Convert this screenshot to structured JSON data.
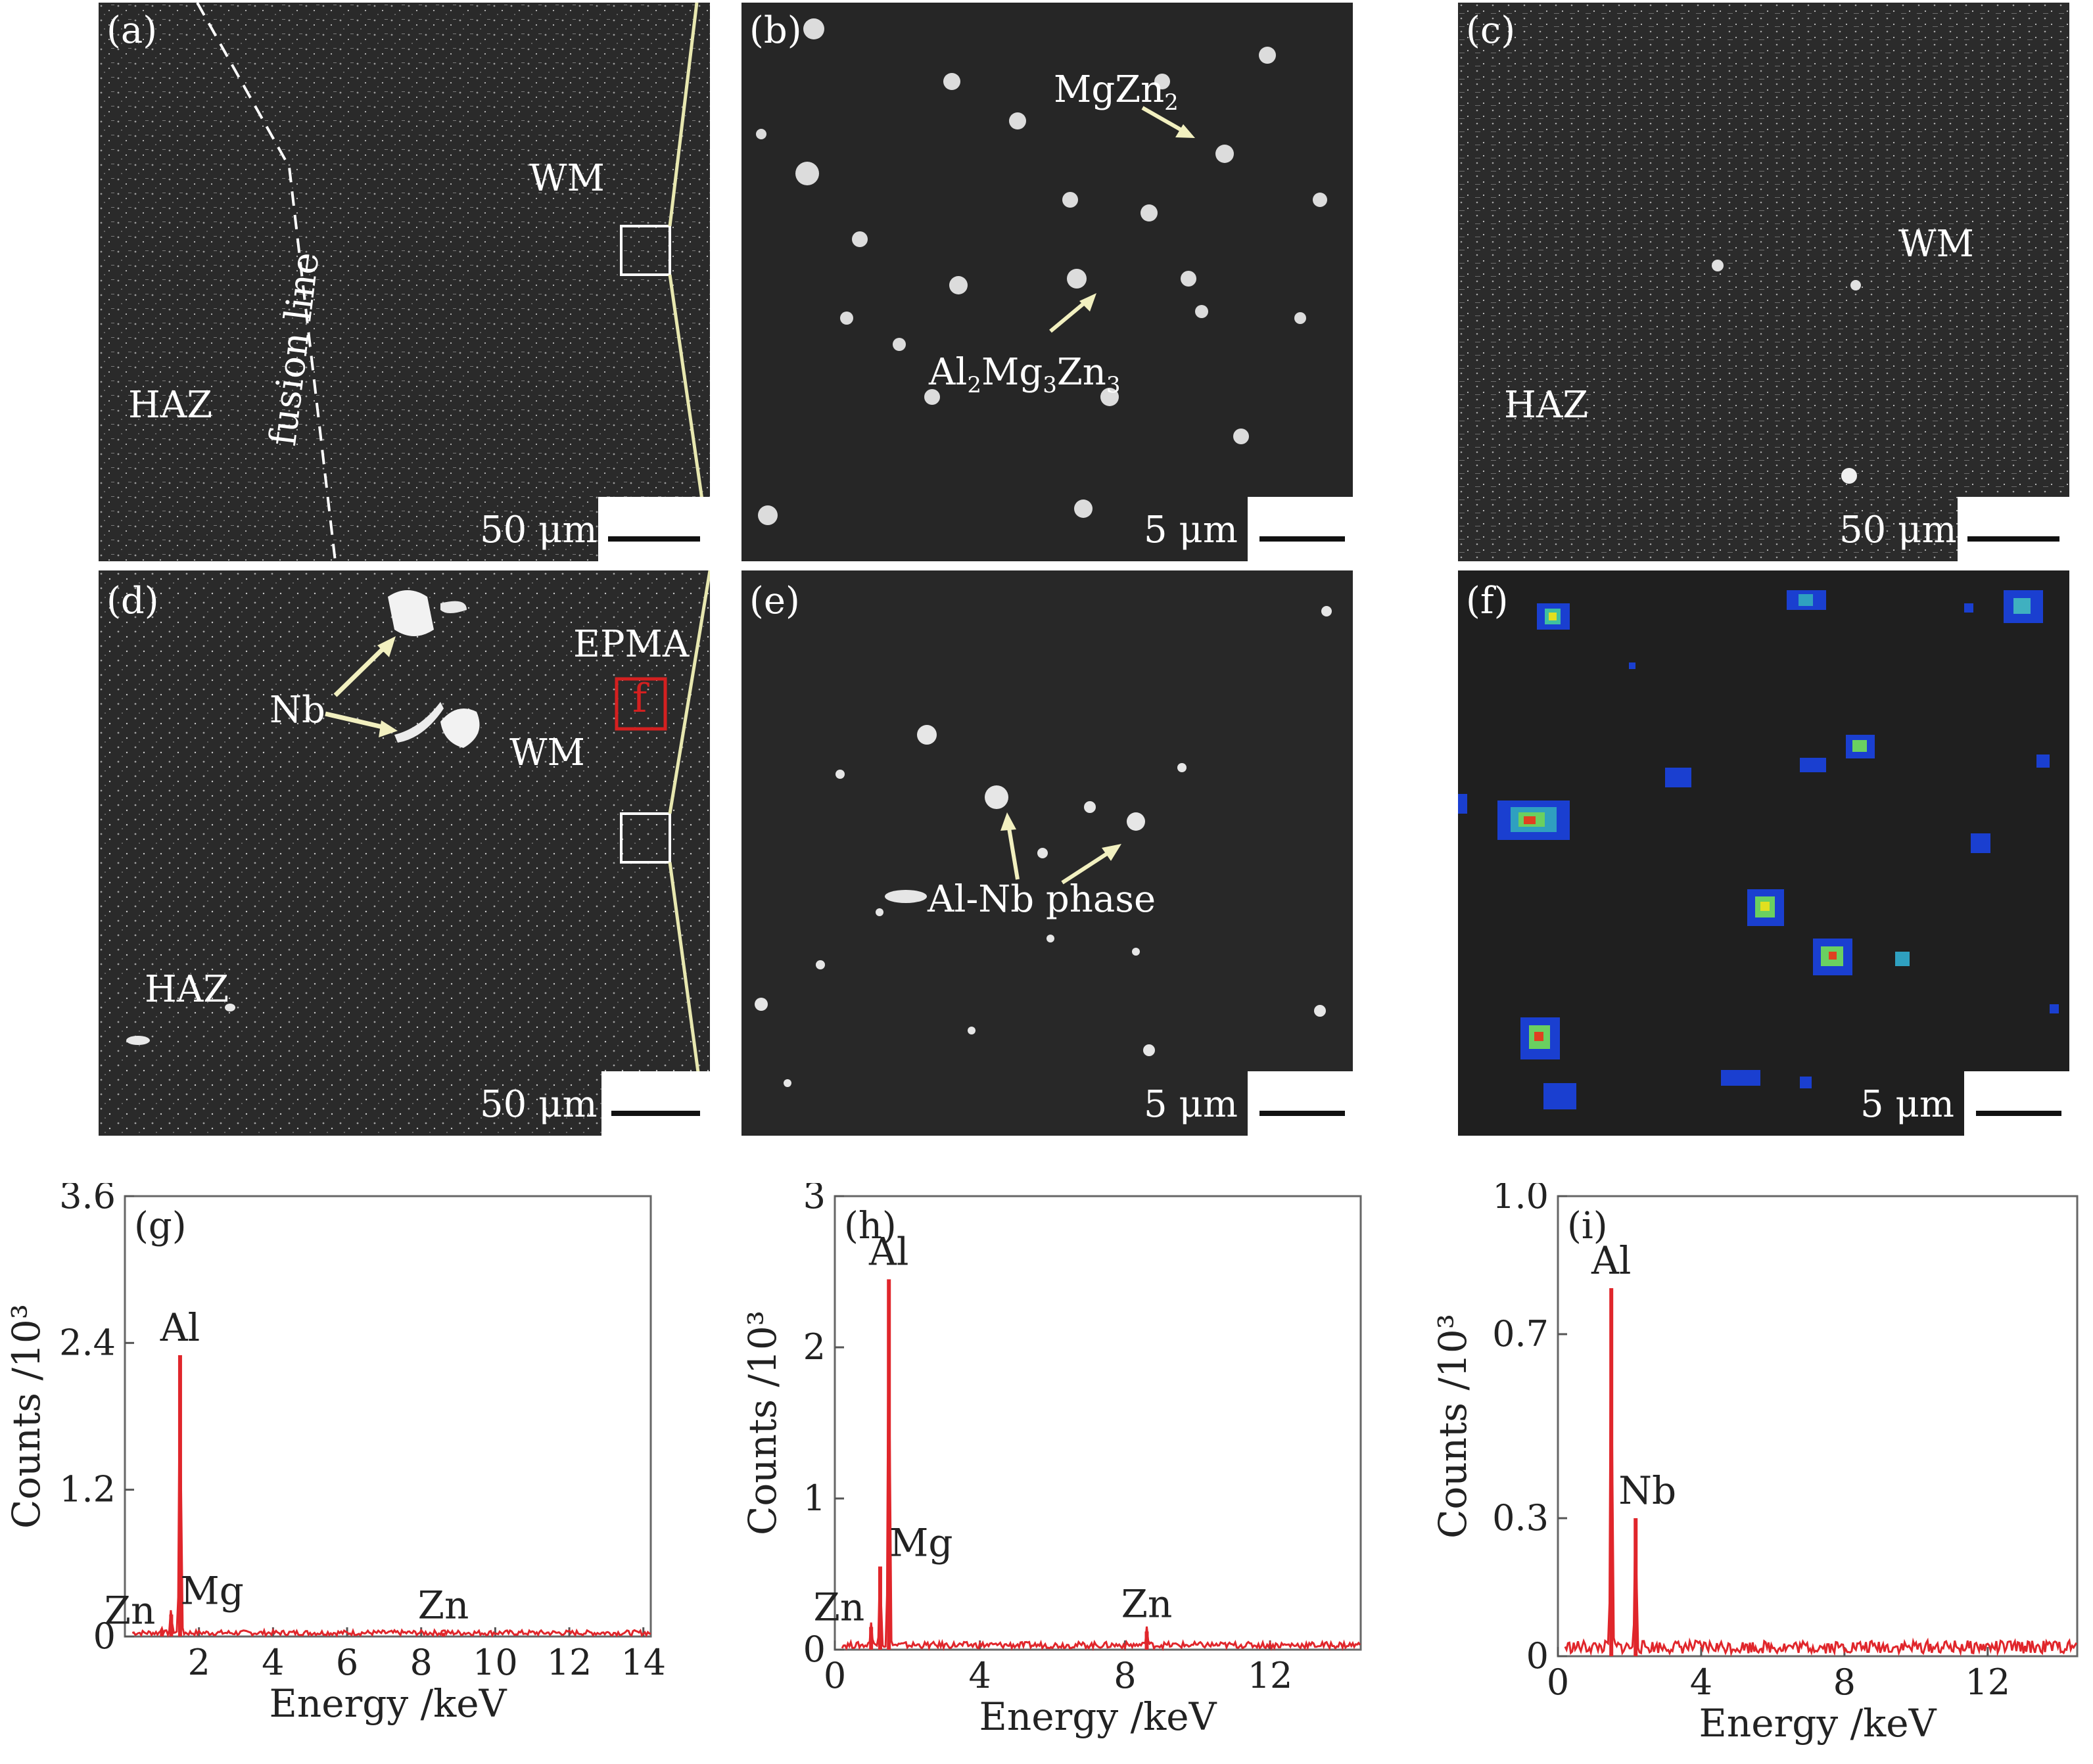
{
  "micrographs": {
    "a": {
      "label": "(a)",
      "scale": "50 μm",
      "haz": "HAZ",
      "wm": "WM",
      "fusion": "fusion line"
    },
    "b": {
      "label": "(b)",
      "scale": "5 μm",
      "mgzn2": "MgZn",
      "mgzn2_sub": "2",
      "al2mg3zn3": [
        "Al",
        "2",
        "Mg",
        "3",
        "Zn",
        "3"
      ]
    },
    "c": {
      "label": "(c)",
      "scale": "50 μm",
      "haz": "HAZ",
      "wm": "WM"
    },
    "d": {
      "label": "(d)",
      "scale": "50 μm",
      "haz": "HAZ",
      "wm": "WM",
      "nb": "Nb",
      "epma": "EPMA",
      "f_box": "f"
    },
    "e": {
      "label": "(e)",
      "scale": "5 μm",
      "phase": "Al-Nb phase"
    },
    "f": {
      "label": "(f)",
      "scale": "5 μm"
    }
  },
  "chart_data": [
    {
      "panel": "(g)",
      "type": "line",
      "xlabel": "Energy /keV",
      "ylabel": "Counts /10³",
      "xlim": [
        0,
        14.2
      ],
      "ylim": [
        0,
        3.6
      ],
      "xticks": [
        2,
        4,
        6,
        8,
        10,
        12,
        14
      ],
      "yticks": [
        0,
        1.2,
        2.4,
        3.6
      ],
      "ytick_labels": [
        "0",
        "1.2",
        "2.4",
        "3.6"
      ],
      "series": [
        {
          "peaks": [
            [
              1.0,
              0.05
            ],
            [
              1.25,
              0.18
            ],
            [
              1.49,
              2.3
            ],
            [
              8.6,
              0.03
            ]
          ],
          "baseline": 0.03
        }
      ],
      "annotations": [
        {
          "text": "Al",
          "x": 1.49,
          "y": 2.3
        },
        {
          "text": "Mg",
          "x": 1.25,
          "y": 0.18
        },
        {
          "text": "Zn",
          "x": 1.0,
          "y": 0.05
        },
        {
          "text": "Zn",
          "x": 8.6,
          "y": 0.03
        }
      ]
    },
    {
      "panel": "(h)",
      "type": "line",
      "xlabel": "Energy /keV",
      "ylabel": "Counts /10³",
      "xlim": [
        0,
        14.5
      ],
      "ylim": [
        0,
        3
      ],
      "xticks": [
        0,
        4,
        8,
        12
      ],
      "yticks": [
        0,
        1,
        2,
        3
      ],
      "ytick_labels": [
        "0",
        "1",
        "2",
        "3"
      ],
      "series": [
        {
          "peaks": [
            [
              1.0,
              0.15
            ],
            [
              1.25,
              0.55
            ],
            [
              1.49,
              2.45
            ],
            [
              8.6,
              0.12
            ]
          ],
          "baseline": 0.03
        }
      ],
      "annotations": [
        {
          "text": "Al",
          "x": 1.49,
          "y": 2.45
        },
        {
          "text": "Mg",
          "x": 1.25,
          "y": 0.55
        },
        {
          "text": "Zn",
          "x": 1.0,
          "y": 0.15
        },
        {
          "text": "Zn",
          "x": 8.6,
          "y": 0.12
        }
      ]
    },
    {
      "panel": "(i)",
      "type": "line",
      "xlabel": "Energy /keV",
      "ylabel": "Counts /10³",
      "xlim": [
        0,
        14.5
      ],
      "ylim": [
        0,
        1.0
      ],
      "xticks": [
        0,
        4,
        8,
        12
      ],
      "yticks": [
        0,
        0.3,
        0.7,
        1.0
      ],
      "ytick_labels": [
        "0",
        "0.3",
        "0.7",
        "1.0"
      ],
      "series": [
        {
          "peaks": [
            [
              1.49,
              0.8
            ],
            [
              2.17,
              0.3
            ]
          ],
          "baseline": 0.02
        }
      ],
      "annotations": [
        {
          "text": "Al",
          "x": 1.49,
          "y": 0.8
        },
        {
          "text": "Nb",
          "x": 2.17,
          "y": 0.3
        }
      ]
    }
  ],
  "colors": {
    "spectrum": "#e0262b",
    "epma_box": "#d42020",
    "arrow": "#f2f0c0",
    "zoom_line": "#e8e8b0"
  }
}
